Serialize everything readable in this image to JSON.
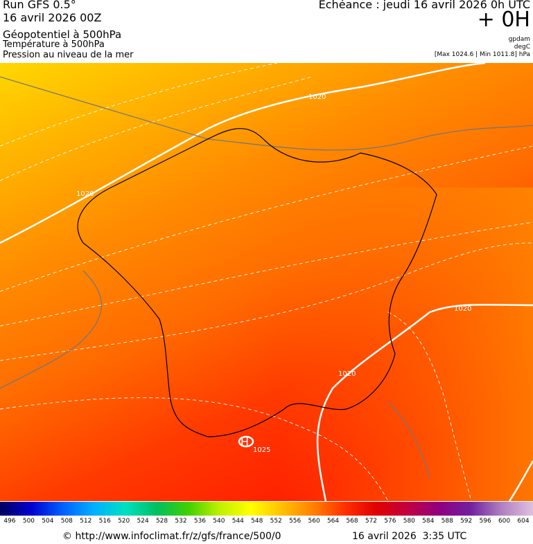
{
  "header": {
    "run": "Run GFS 0.5°",
    "date": "16 avril 2026 00Z",
    "title": "Géopotentiel à 500hPa",
    "subtitle1": "Température à 500hPa",
    "subtitle2": "Pression au niveau de la mer",
    "forecast": "Echéance : jeudi 16 avril 2026 0h UTC",
    "offset": "+ 0H",
    "unit1": "gpdam",
    "unit2": "degC",
    "range": "[Max 1024.6 | Min 1011.8] hPa"
  },
  "map": {
    "labels": [
      "1020",
      "1020",
      "1020",
      "1020",
      "1025",
      "H"
    ]
  },
  "colorbar": {
    "labels": [
      496,
      500,
      504,
      508,
      512,
      516,
      520,
      524,
      528,
      532,
      536,
      540,
      544,
      548,
      552,
      556,
      560,
      564,
      568,
      572,
      576,
      580,
      584,
      588,
      592,
      596,
      600,
      604
    ]
  },
  "footer": {
    "source": "© http://www.infoclimat.fr/z/gfs/france/500/0",
    "time": "16 avril 2026  3:35 UTC"
  }
}
